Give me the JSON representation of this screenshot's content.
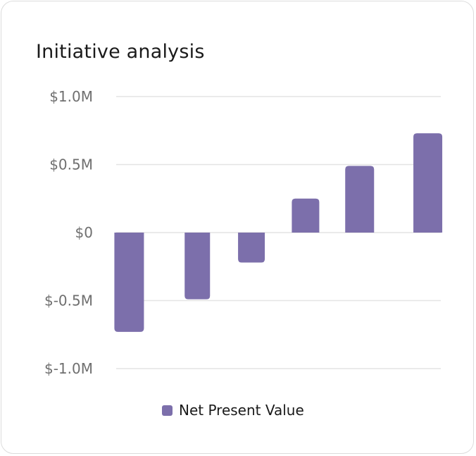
{
  "chart_data": {
    "type": "bar",
    "title": "Initiative analysis",
    "xlabel": "",
    "ylabel": "",
    "categories": [
      "",
      "",
      "",
      "",
      "",
      ""
    ],
    "series": [
      {
        "name": "Net Present Value",
        "color": "#7c6fab",
        "values": [
          -0.73,
          -0.49,
          -0.22,
          0.25,
          0.49,
          0.73
        ]
      }
    ],
    "ylim": [
      -1.0,
      1.0
    ],
    "yticks": [
      1.0,
      0.5,
      0,
      -0.5,
      -1.0
    ],
    "ytick_labels": [
      "$1.0M",
      "$0.5M",
      "$0",
      "$-0.5M",
      "$-1.0M"
    ],
    "grid": true,
    "legend": "bottom"
  }
}
